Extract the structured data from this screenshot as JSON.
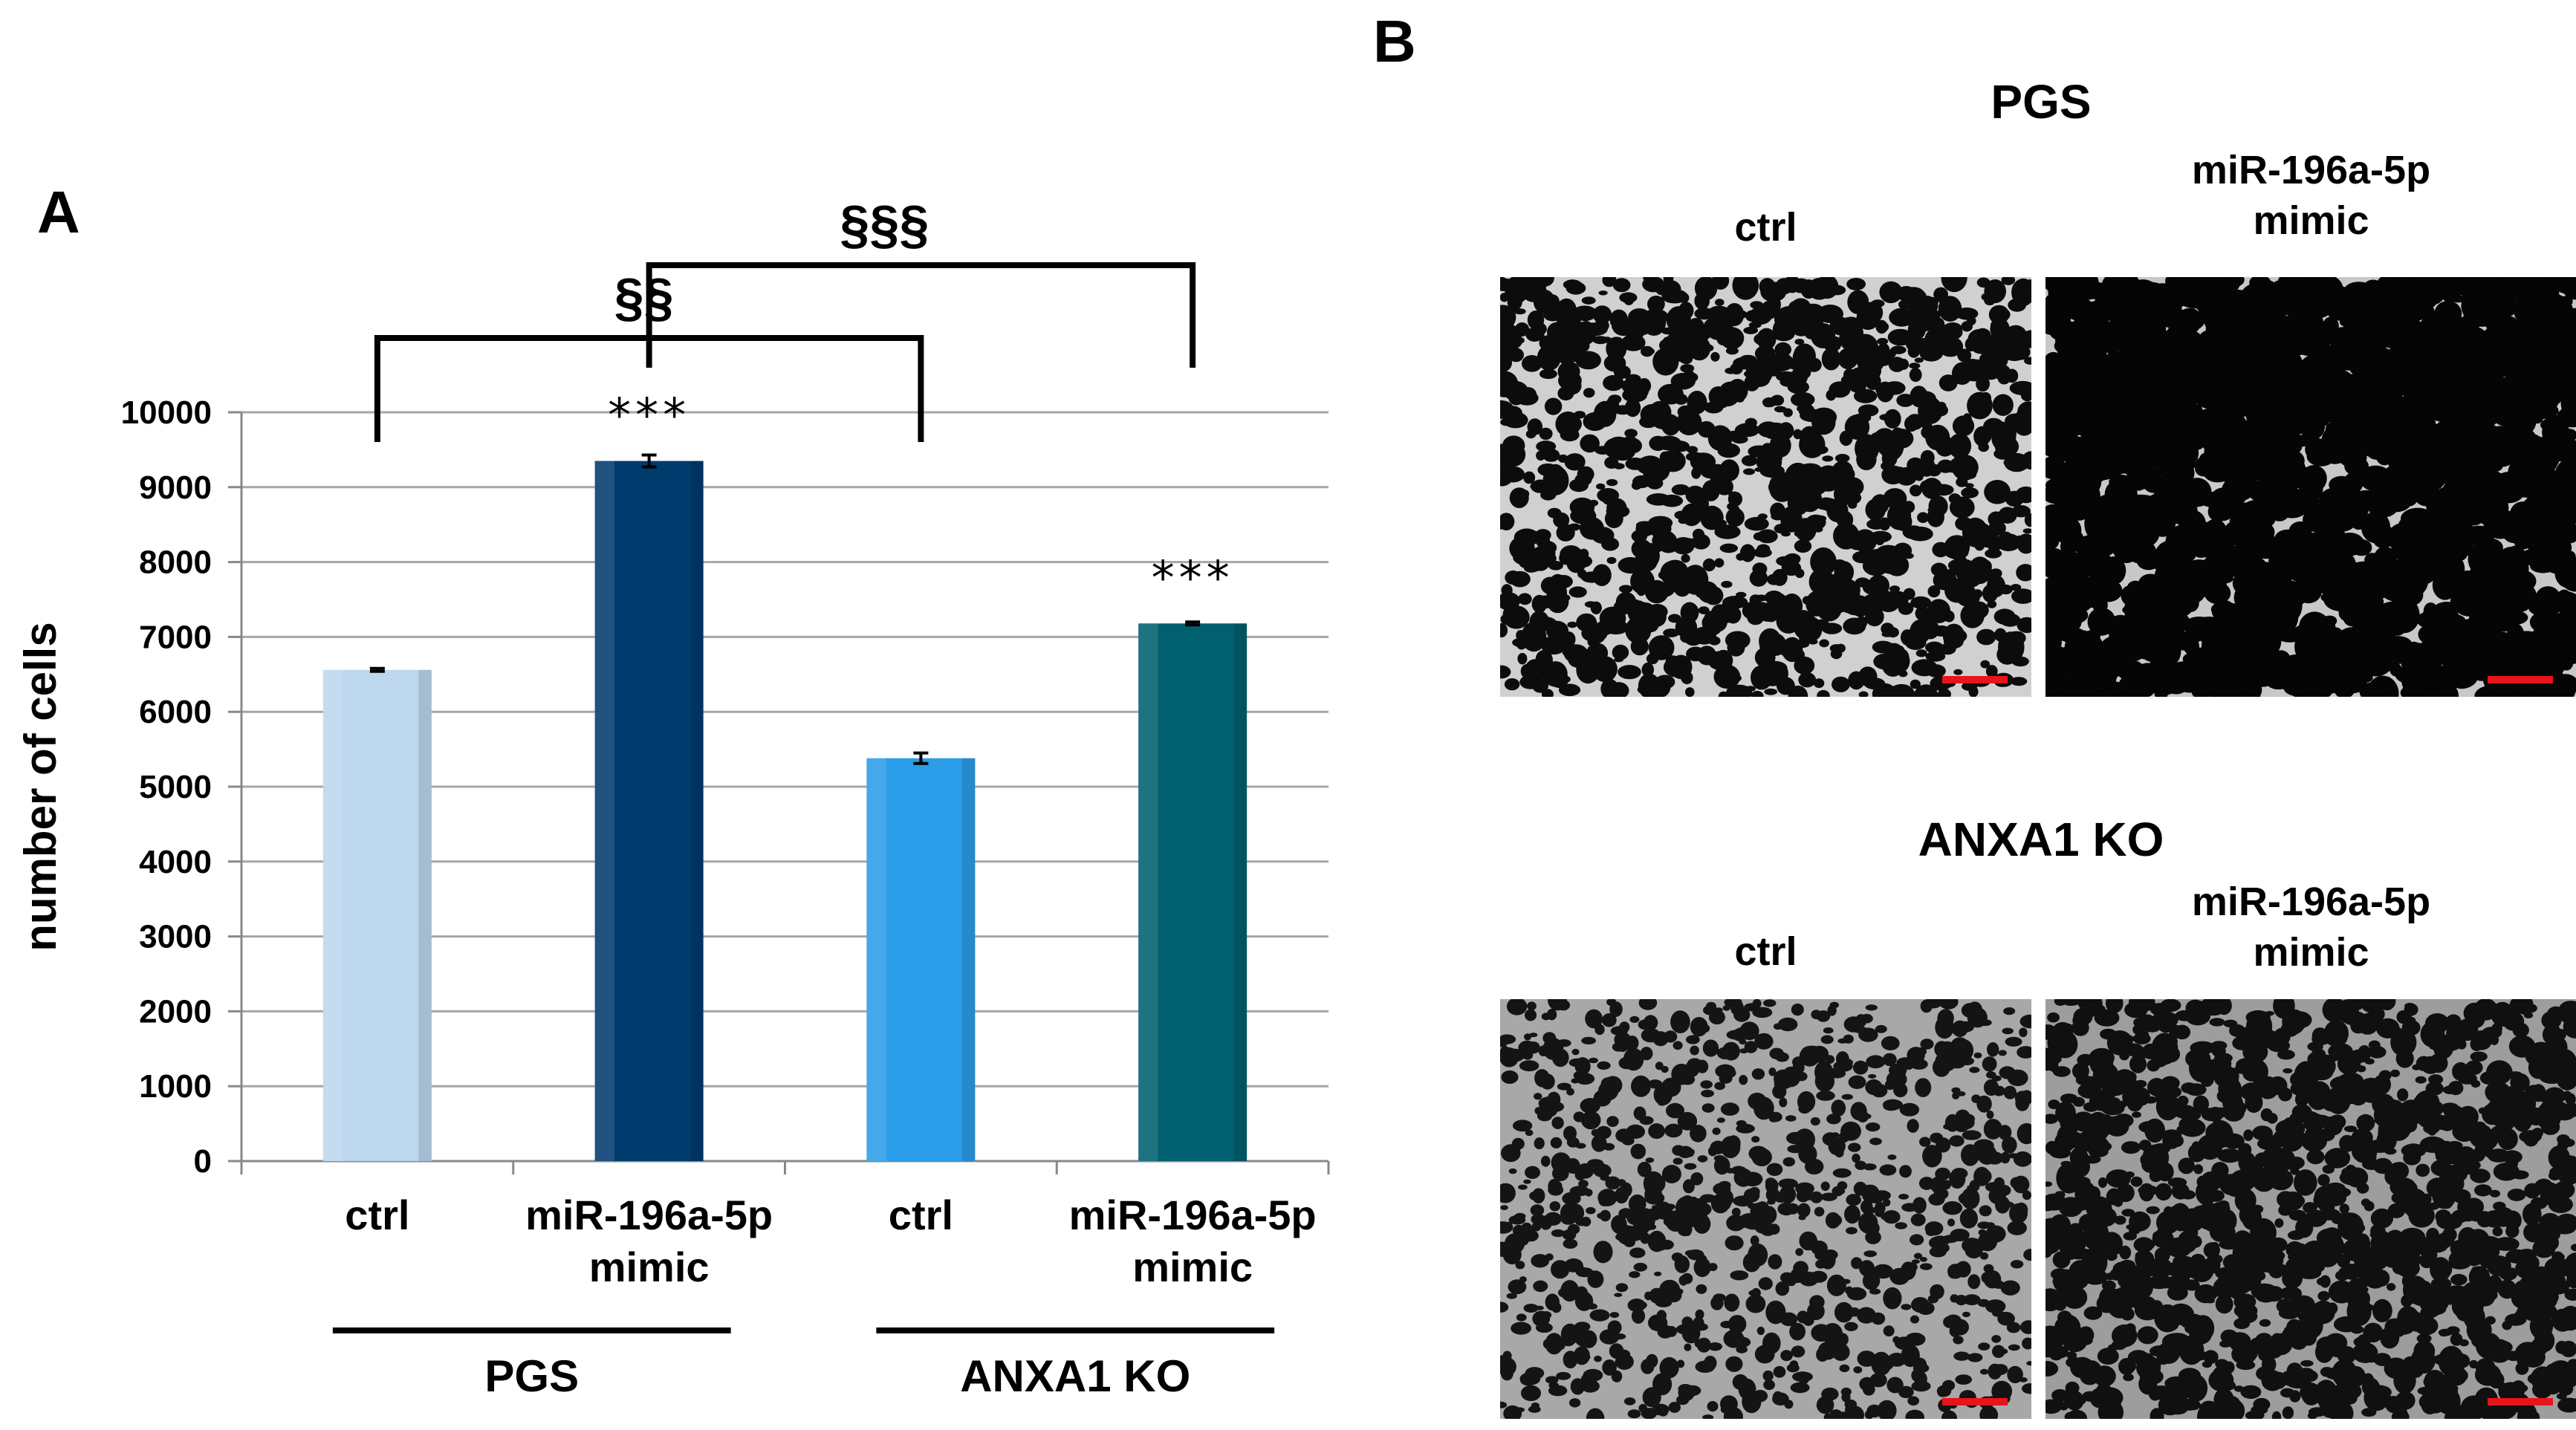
{
  "panel_a": {
    "letter": "A",
    "chart_data": {
      "type": "bar",
      "title": "",
      "xlabel": "",
      "ylabel": "number of cells",
      "ylim": [
        0,
        10000
      ],
      "yticks": [
        0,
        1000,
        2000,
        3000,
        4000,
        5000,
        6000,
        7000,
        8000,
        9000,
        10000
      ],
      "grid": true,
      "legend": "none",
      "categories": [
        "ctrl",
        "miR-196a-5p\nmimic",
        "ctrl",
        "miR-196a-5p\nmimic"
      ],
      "values": [
        6560,
        9350,
        5380,
        7180
      ],
      "errors": [
        20,
        80,
        70,
        20
      ],
      "colors": [
        "#bdd7ee",
        "#003b6e",
        "#2b9de8",
        "#006070"
      ],
      "significance_stars": [
        "",
        "***",
        "",
        "***"
      ],
      "groups": [
        {
          "label": "PGS",
          "categories": [
            0,
            1
          ]
        },
        {
          "label": "ANXA1 KO",
          "categories": [
            2,
            3
          ]
        }
      ],
      "brackets": [
        {
          "label": "§§",
          "from": 0,
          "to": 2
        },
        {
          "label": "§§§",
          "from": 1,
          "to": 3
        }
      ]
    }
  },
  "panel_b": {
    "letter": "B",
    "sections": [
      {
        "title": "PGS",
        "images": [
          {
            "label": "ctrl",
            "style": "pgs-ctrl"
          },
          {
            "label": "miR-196a-5p\nmimic",
            "style": "pgs-mimic"
          }
        ]
      },
      {
        "title": "ANXA1 KO",
        "images": [
          {
            "label": "ctrl",
            "style": "ko-ctrl"
          },
          {
            "label": "miR-196a-5p\nmimic",
            "style": "ko-mimic"
          }
        ]
      }
    ],
    "scale_bar_color": "#e8141a"
  }
}
